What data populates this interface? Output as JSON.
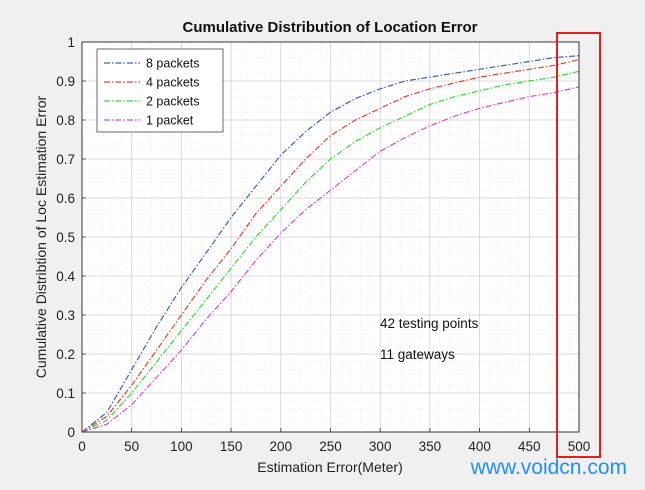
{
  "chart_data": {
    "type": "line",
    "title": "Cumulative Distribution of Location Error",
    "xlabel": "Estimation Error(Meter)",
    "ylabel": "Cumulative Distribtion of Loc Estimation Error",
    "xlim": [
      0,
      500
    ],
    "ylim": [
      0,
      1
    ],
    "xticks": [
      "0",
      "50",
      "100",
      "150",
      "200",
      "250",
      "300",
      "350",
      "400",
      "450",
      "500"
    ],
    "yticks": [
      "0",
      "0.1",
      "0.2",
      "0.3",
      "0.4",
      "0.5",
      "0.6",
      "0.7",
      "0.8",
      "0.9",
      "1"
    ],
    "grid": true,
    "legend_position": "top-left",
    "x": [
      0,
      25,
      50,
      75,
      100,
      125,
      150,
      175,
      200,
      225,
      250,
      275,
      300,
      325,
      350,
      375,
      400,
      425,
      450,
      475,
      500
    ],
    "series": [
      {
        "name": "8 packets",
        "color": "#3a5fcd",
        "values": [
          0,
          0.05,
          0.16,
          0.27,
          0.37,
          0.46,
          0.55,
          0.63,
          0.71,
          0.77,
          0.82,
          0.855,
          0.88,
          0.9,
          0.91,
          0.92,
          0.93,
          0.94,
          0.95,
          0.96,
          0.965
        ]
      },
      {
        "name": "4 packets",
        "color": "#e8412c",
        "values": [
          0,
          0.04,
          0.12,
          0.21,
          0.3,
          0.39,
          0.47,
          0.56,
          0.63,
          0.7,
          0.76,
          0.8,
          0.83,
          0.86,
          0.88,
          0.895,
          0.91,
          0.92,
          0.93,
          0.94,
          0.955
        ]
      },
      {
        "name": "2 packets",
        "color": "#33dd33",
        "values": [
          0,
          0.03,
          0.1,
          0.18,
          0.26,
          0.34,
          0.42,
          0.5,
          0.57,
          0.64,
          0.7,
          0.745,
          0.78,
          0.81,
          0.84,
          0.86,
          0.875,
          0.89,
          0.9,
          0.91,
          0.925
        ]
      },
      {
        "name": "1 packet",
        "color": "#dd44dd",
        "values": [
          0,
          0.02,
          0.07,
          0.14,
          0.21,
          0.29,
          0.36,
          0.44,
          0.51,
          0.57,
          0.62,
          0.67,
          0.72,
          0.755,
          0.785,
          0.81,
          0.83,
          0.845,
          0.86,
          0.87,
          0.885
        ]
      }
    ],
    "annotations": [
      "42 testing points",
      "11 gateways"
    ],
    "highlight_color": "#e02020"
  },
  "watermark": "www.voidcn.com"
}
